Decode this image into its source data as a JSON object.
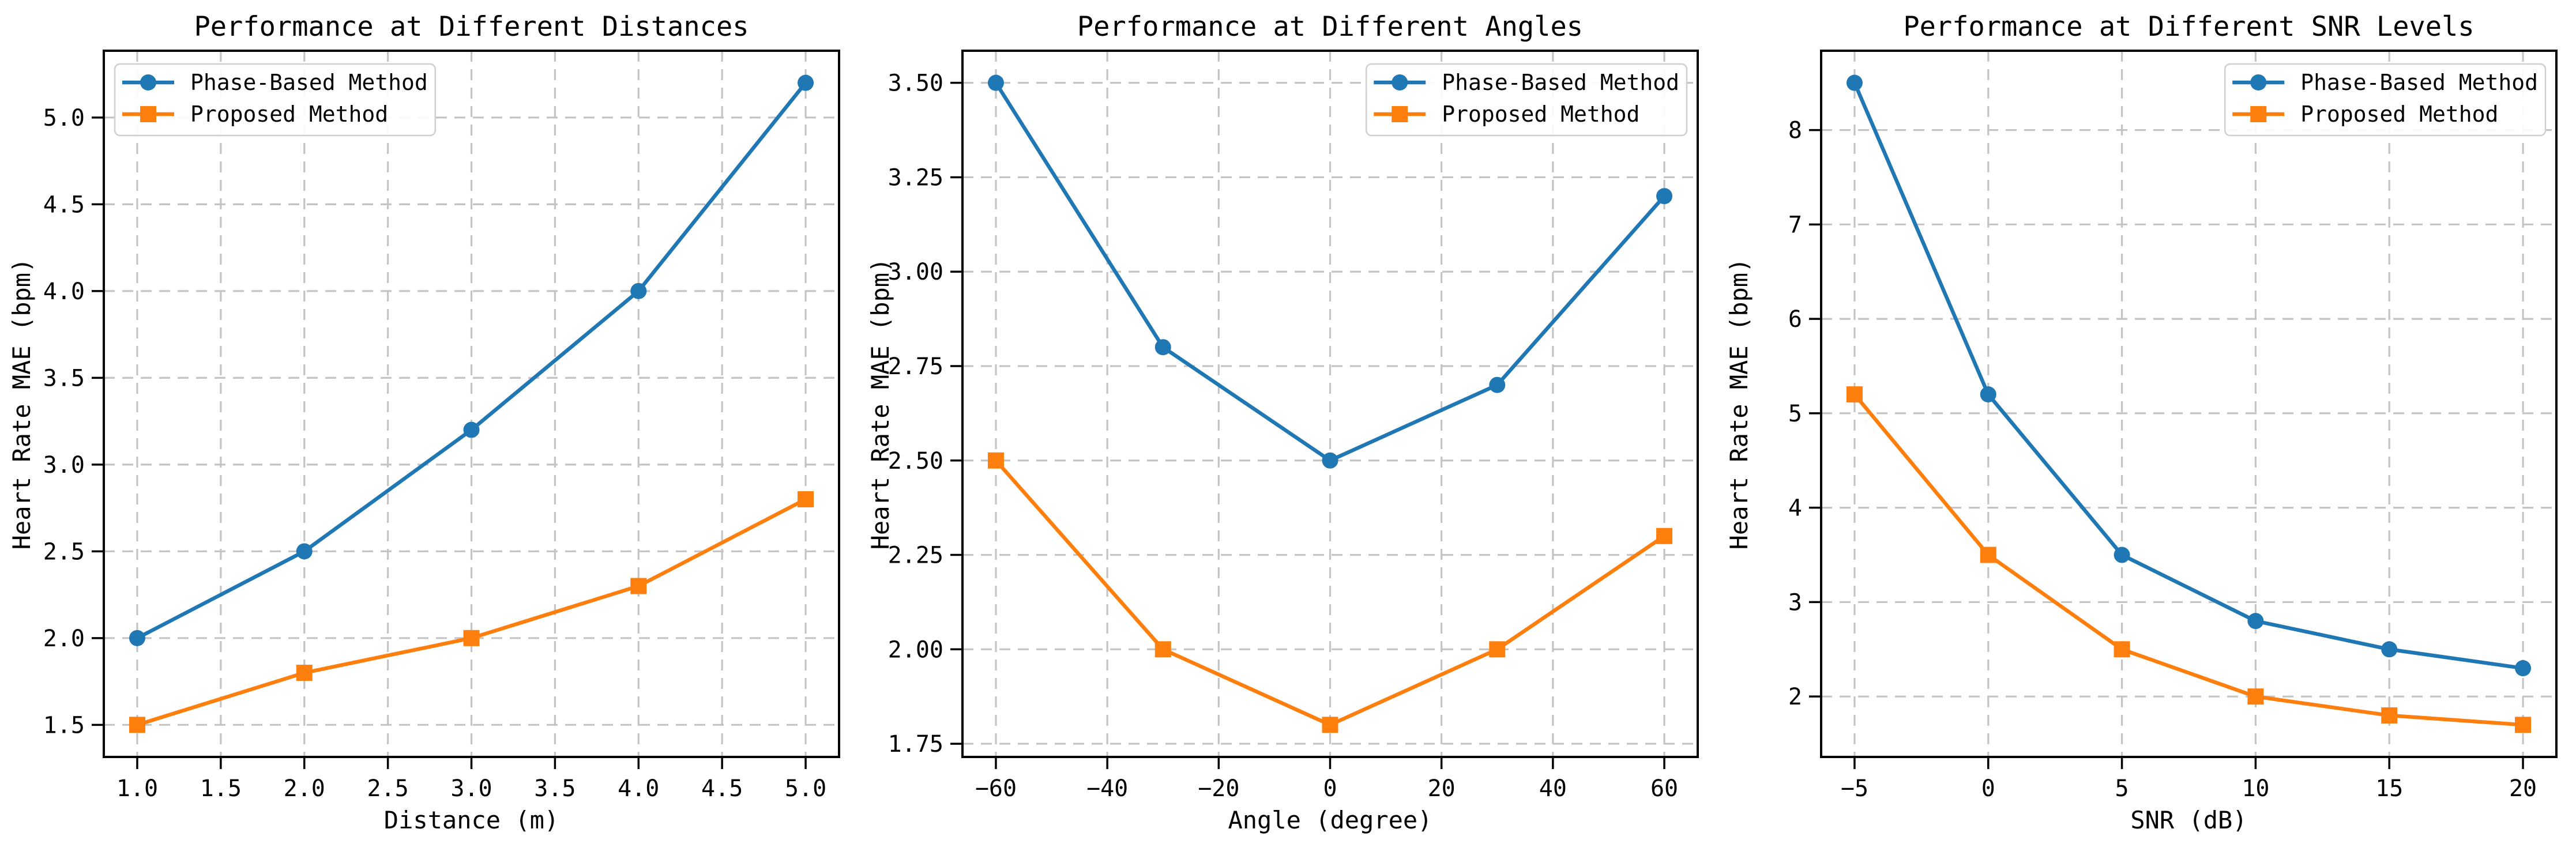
{
  "figure": {
    "background": "#ffffff",
    "n_subplots": 3
  },
  "colors": {
    "phase_based": "#1f77b4",
    "proposed": "#ff7f0e",
    "grid": "#c4c4c4",
    "spine": "#000000",
    "legend_border": "#cfcfcf"
  },
  "legend": {
    "items": [
      {
        "label": "Phase-Based Method",
        "marker": "circle",
        "color": "#1f77b4"
      },
      {
        "label": "Proposed Method",
        "marker": "square",
        "color": "#ff7f0e"
      }
    ]
  },
  "chart_data": [
    {
      "type": "line",
      "title": "Performance at Different Distances",
      "xlabel": "Distance (m)",
      "ylabel": "Heart Rate MAE (bpm)",
      "x": [
        1.0,
        2.0,
        3.0,
        4.0,
        5.0
      ],
      "series": [
        {
          "name": "Phase-Based Method",
          "marker": "circle",
          "color": "#1f77b4",
          "values": [
            2.0,
            2.5,
            3.2,
            4.0,
            5.2
          ]
        },
        {
          "name": "Proposed Method",
          "marker": "square",
          "color": "#ff7f0e",
          "values": [
            1.5,
            1.8,
            2.0,
            2.3,
            2.8
          ]
        }
      ],
      "xlim": [
        0.8,
        5.2
      ],
      "ylim": [
        1.315,
        5.385
      ],
      "xticks": {
        "values": [
          1.0,
          1.5,
          2.0,
          2.5,
          3.0,
          3.5,
          4.0,
          4.5,
          5.0
        ],
        "labels": [
          "1.0",
          "1.5",
          "2.0",
          "2.5",
          "3.0",
          "3.5",
          "4.0",
          "4.5",
          "5.0"
        ]
      },
      "yticks": {
        "values": [
          1.5,
          2.0,
          2.5,
          3.0,
          3.5,
          4.0,
          4.5,
          5.0
        ],
        "labels": [
          "1.5",
          "2.0",
          "2.5",
          "3.0",
          "3.5",
          "4.0",
          "4.5",
          "5.0"
        ]
      },
      "legend_position": "upper-left",
      "grid": true
    },
    {
      "type": "line",
      "title": "Performance at Different Angles",
      "xlabel": "Angle (degree)",
      "ylabel": "Heart Rate MAE (bpm)",
      "x": [
        -60,
        -30,
        0,
        30,
        60
      ],
      "series": [
        {
          "name": "Phase-Based Method",
          "marker": "circle",
          "color": "#1f77b4",
          "values": [
            3.5,
            2.8,
            2.5,
            2.7,
            3.2
          ]
        },
        {
          "name": "Proposed Method",
          "marker": "square",
          "color": "#ff7f0e",
          "values": [
            2.5,
            2.0,
            1.8,
            2.0,
            2.3
          ]
        }
      ],
      "xlim": [
        -66,
        66
      ],
      "ylim": [
        1.715,
        3.585
      ],
      "xticks": {
        "values": [
          -60,
          -40,
          -20,
          0,
          20,
          40,
          60
        ],
        "labels": [
          "−60",
          "−40",
          "−20",
          "0",
          "20",
          "40",
          "60"
        ]
      },
      "yticks": {
        "values": [
          1.75,
          2.0,
          2.25,
          2.5,
          2.75,
          3.0,
          3.25,
          3.5
        ],
        "labels": [
          "1.75",
          "2.00",
          "2.25",
          "2.50",
          "2.75",
          "3.00",
          "3.25",
          "3.50"
        ]
      },
      "legend_position": "upper-right",
      "grid": true
    },
    {
      "type": "line",
      "title": "Performance at Different SNR Levels",
      "xlabel": "SNR (dB)",
      "ylabel": "Heart Rate MAE (bpm)",
      "x": [
        -5,
        0,
        5,
        10,
        15,
        20
      ],
      "series": [
        {
          "name": "Phase-Based Method",
          "marker": "circle",
          "color": "#1f77b4",
          "values": [
            8.5,
            5.2,
            3.5,
            2.8,
            2.5,
            2.3
          ]
        },
        {
          "name": "Proposed Method",
          "marker": "square",
          "color": "#ff7f0e",
          "values": [
            5.2,
            3.5,
            2.5,
            2.0,
            1.8,
            1.7
          ]
        }
      ],
      "xlim": [
        -6.25,
        21.25
      ],
      "ylim": [
        1.36,
        8.84
      ],
      "xticks": {
        "values": [
          -5,
          0,
          5,
          10,
          15,
          20
        ],
        "labels": [
          "−5",
          "0",
          "5",
          "10",
          "15",
          "20"
        ]
      },
      "yticks": {
        "values": [
          2,
          3,
          4,
          5,
          6,
          7,
          8
        ],
        "labels": [
          "2",
          "3",
          "4",
          "5",
          "6",
          "7",
          "8"
        ]
      },
      "legend_position": "upper-right",
      "grid": true
    }
  ]
}
